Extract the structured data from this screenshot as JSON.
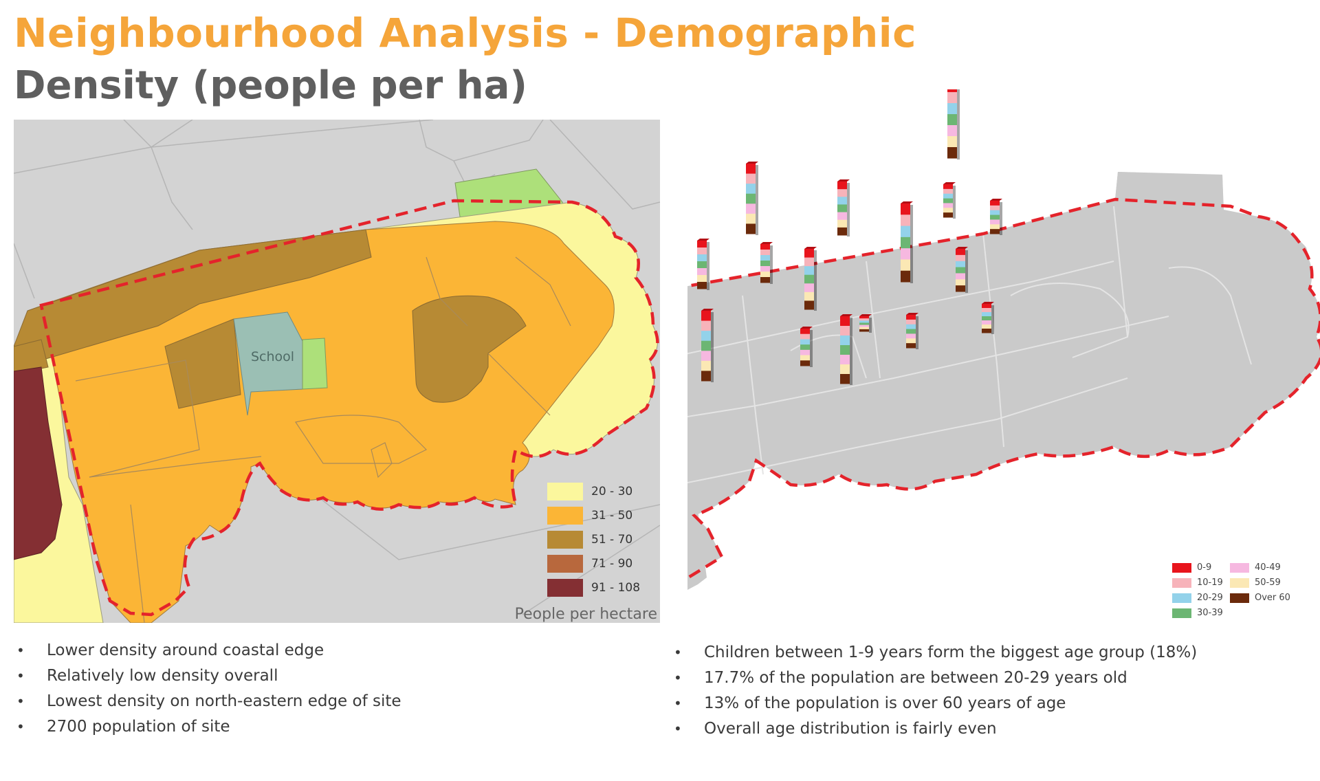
{
  "title": "Neighbourhood Analysis - Demographic",
  "subtitle": "Density (people per ha)",
  "density_map": {
    "school_label": "School",
    "legend_caption": "People per hectare",
    "legend": [
      {
        "label": "20 - 30",
        "color": "#fbf79d"
      },
      {
        "label": "31 - 50",
        "color": "#fbb536"
      },
      {
        "label": "51 - 70",
        "color": "#b78a34"
      },
      {
        "label": "71 - 90",
        "color": "#b8683d"
      },
      {
        "label": "91 - 108",
        "color": "#842f33"
      }
    ],
    "colors": {
      "base": "#d3d3d3",
      "school": "#9bbfb4",
      "park": "#ade07a",
      "site_boundary": "#e4232b"
    }
  },
  "age_map": {
    "legend": [
      {
        "label": "0-9",
        "color": "#e8141c"
      },
      {
        "label": "10-19",
        "color": "#f7b3ba"
      },
      {
        "label": "20-29",
        "color": "#93d2ea"
      },
      {
        "label": "30-39",
        "color": "#6cb673"
      },
      {
        "label": "40-49",
        "color": "#f6b8e0"
      },
      {
        "label": "50-59",
        "color": "#fbe8b4"
      },
      {
        "label": "Over 60",
        "color": "#6b2a0b"
      }
    ],
    "colors": {
      "base": "#cacaca",
      "site_boundary": "#e4232b"
    }
  },
  "bullets_left": [
    "Lower density around coastal edge",
    "Relatively low density overall",
    "Lowest density on north-eastern edge of site",
    "2700 population of site"
  ],
  "bullets_right": [
    "Children between 1-9 years form the biggest age group (18%)",
    "17.7% of the population are between 20-29 years old",
    "13% of the population is over 60 years of age",
    "Overall age distribution is fairly even"
  ]
}
